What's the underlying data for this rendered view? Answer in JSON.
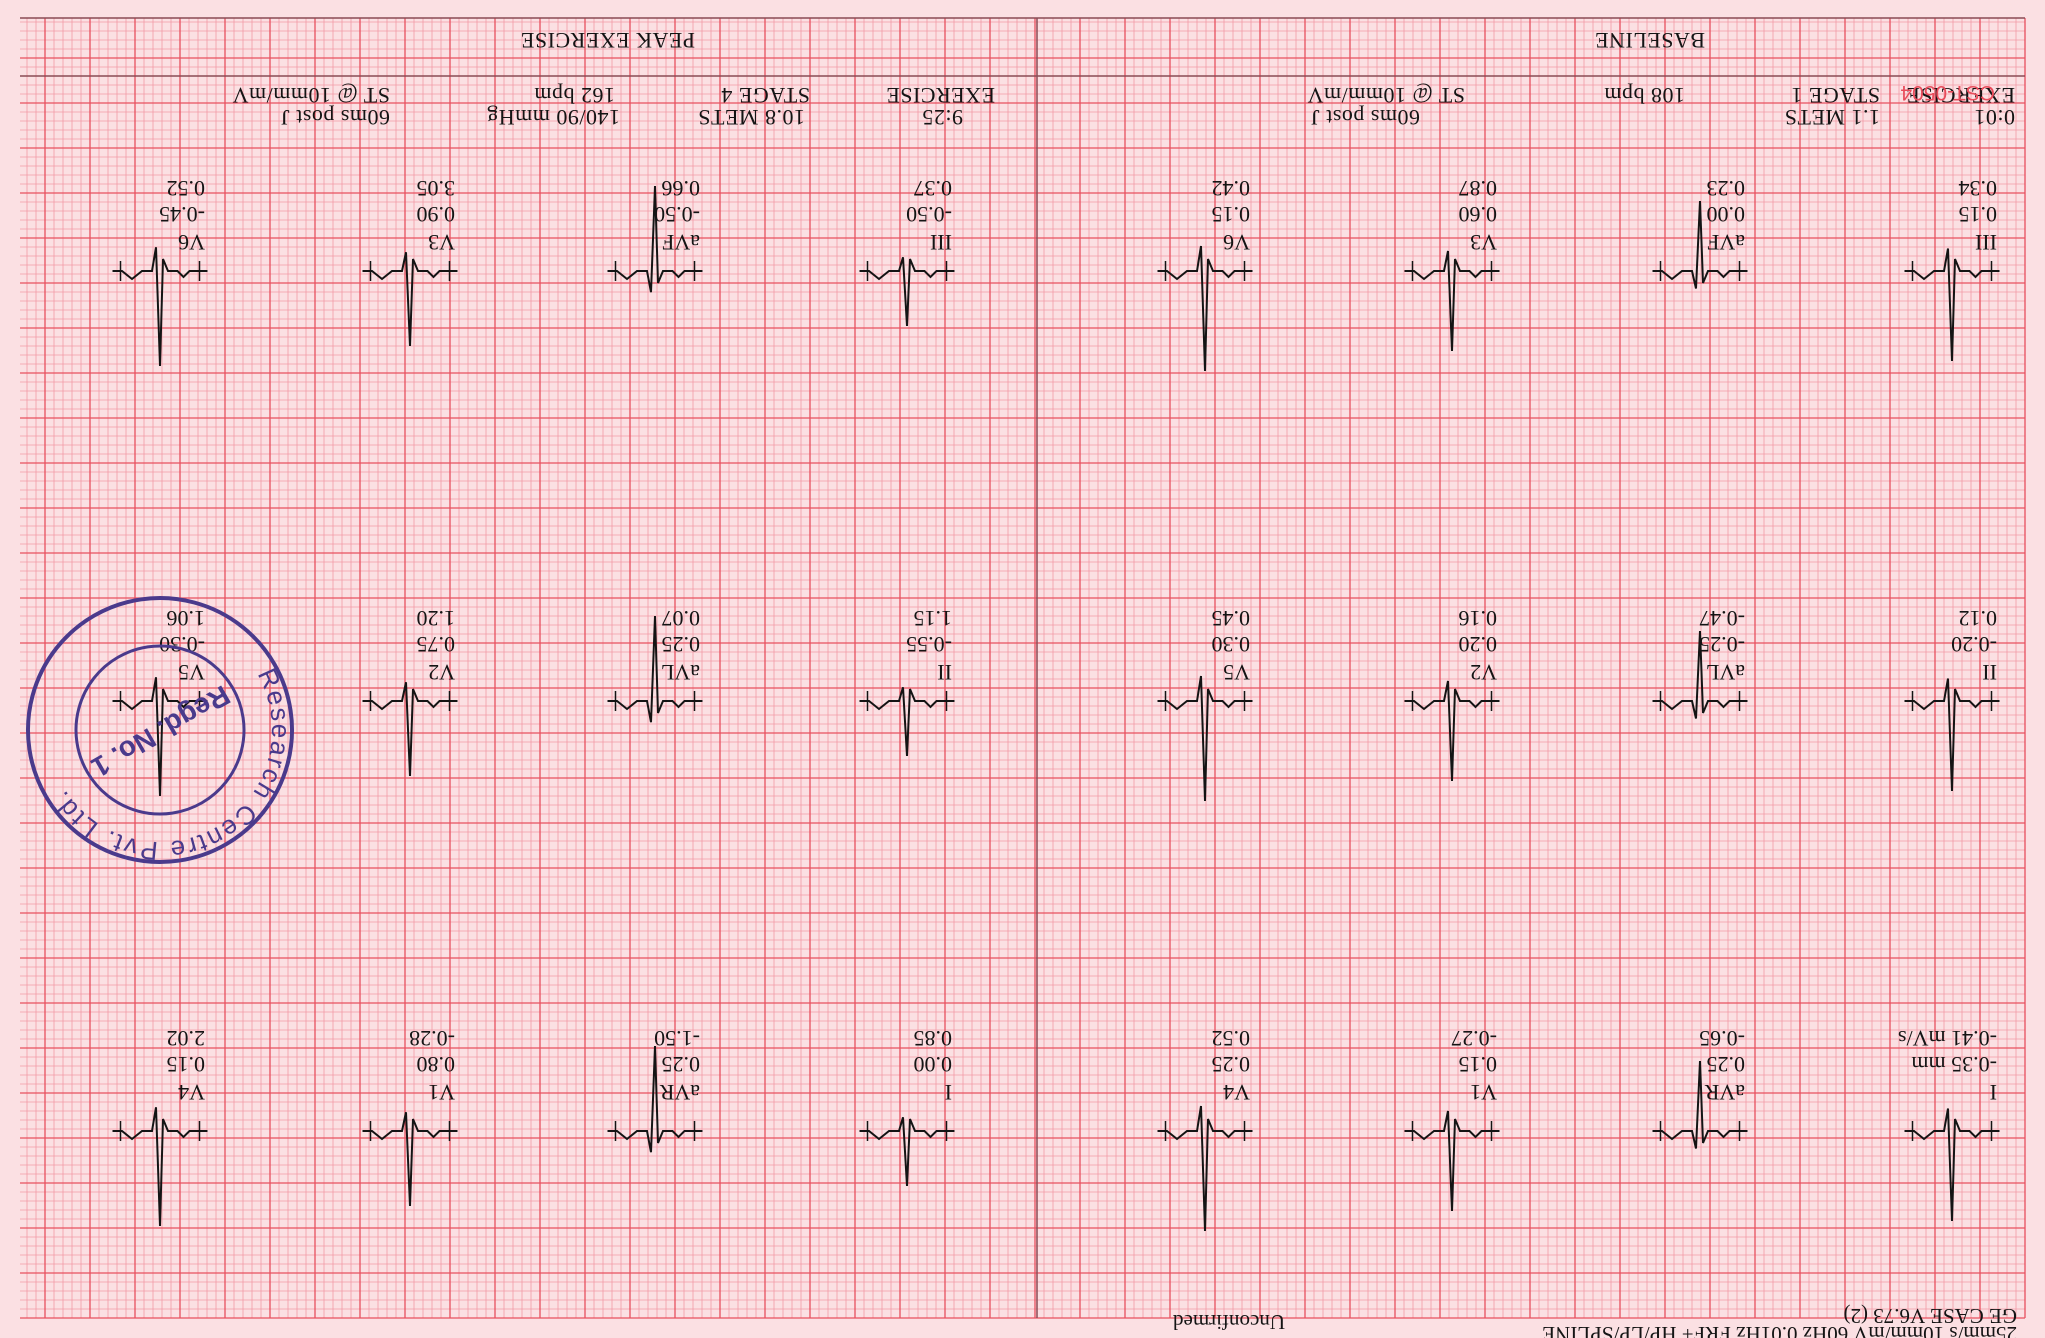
{
  "header": {
    "device": "GE CASE V6.73 (2)",
    "settings": "25mm/s 10mm/mV 60Hz 0.01Hz FRF+ HP/LP/SPLINE",
    "status": "Unconfirmed"
  },
  "footer": {
    "code": "CST-0504",
    "baseline": {
      "section": "BASELINE",
      "phase": "EXERCISE",
      "time": "0:01",
      "stage": "STAGE 1",
      "mets": "1.1 METS",
      "hr": "108 bpm",
      "st": "ST @ 10mm/mV",
      "post": "60ms post J"
    },
    "peak": {
      "section": "PEAK EXERCISE",
      "phase": "EXERCISE",
      "time": "9:25",
      "stage": "STAGE 4",
      "mets": "10.8 METS",
      "hr": "162 bpm",
      "bp": "140/90 mmHg",
      "st": "ST @ 10mm/mV",
      "post": "60ms post J"
    }
  },
  "leads": [
    {
      "lead": "I",
      "v1": "-0.35 mm",
      "v2": "-0.41 mV/s",
      "v3": ""
    },
    {
      "lead": "aVR",
      "v1": "0.25",
      "v2": "-0.65",
      "v3": ""
    },
    {
      "lead": "V1",
      "v1": "0.15",
      "v2": "-0.27",
      "v3": ""
    },
    {
      "lead": "V4",
      "v1": "0.25",
      "v2": "0.52",
      "v3": ""
    },
    {
      "lead": "I",
      "v1": "0.00",
      "v2": "0.85",
      "v3": ""
    },
    {
      "lead": "aVR",
      "v1": "0.25",
      "v2": "-1.50",
      "v3": ""
    },
    {
      "lead": "V1",
      "v1": "0.80",
      "v2": "-0.28",
      "v3": ""
    },
    {
      "lead": "V4",
      "v1": "0.15",
      "v2": "2.02",
      "v3": ""
    },
    {
      "lead": "II",
      "v1": "-0.20",
      "v2": "0.12",
      "v3": ""
    },
    {
      "lead": "aVL",
      "v1": "-0.25",
      "v2": "-0.47",
      "v3": ""
    },
    {
      "lead": "V2",
      "v1": "0.20",
      "v2": "0.16",
      "v3": ""
    },
    {
      "lead": "V5",
      "v1": "0.30",
      "v2": "0.45",
      "v3": ""
    },
    {
      "lead": "II",
      "v1": "-0.55",
      "v2": "1.15",
      "v3": ""
    },
    {
      "lead": "aVL",
      "v1": "0.25",
      "v2": "0.07",
      "v3": ""
    },
    {
      "lead": "V2",
      "v1": "0.75",
      "v2": "1.20",
      "v3": ""
    },
    {
      "lead": "V5",
      "v1": "-0.30",
      "v2": "1.06",
      "v3": ""
    },
    {
      "lead": "III",
      "v1": "0.15",
      "v2": "0.34",
      "v3": ""
    },
    {
      "lead": "aVF",
      "v1": "0.00",
      "v2": "0.23",
      "v3": ""
    },
    {
      "lead": "V3",
      "v1": "0.60",
      "v2": "0.87",
      "v3": ""
    },
    {
      "lead": "V6",
      "v1": "0.15",
      "v2": "0.42",
      "v3": ""
    },
    {
      "lead": "III",
      "v1": "-0.50",
      "v2": "0.37",
      "v3": ""
    },
    {
      "lead": "aVF",
      "v1": "-0.50",
      "v2": "0.66",
      "v3": ""
    },
    {
      "lead": "V3",
      "v1": "0.90",
      "v2": "3.05",
      "v3": ""
    },
    {
      "lead": "V6",
      "v1": "-0.45",
      "v2": "0.52",
      "v3": ""
    }
  ],
  "stamp": {
    "ring_text": "Research Centre Pvt. Ltd.",
    "center_text": "Regd. No. 1",
    "color": "#4a3a8c"
  },
  "colors": {
    "paper": "#fbe0e3",
    "grid_minor": "#f29aa6",
    "grid_major": "#e8505f",
    "trace": "#141414"
  }
}
